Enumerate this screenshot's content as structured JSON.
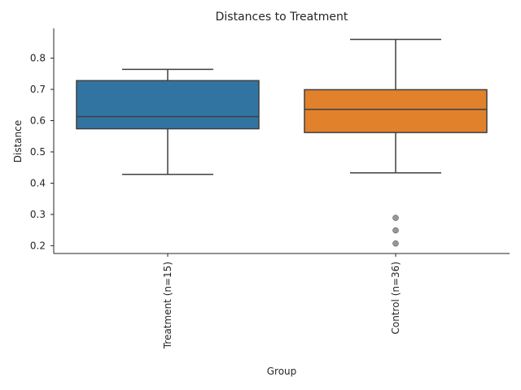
{
  "chart_data": {
    "type": "boxplot",
    "title": "Distances to Treatment",
    "xlabel": "Group",
    "ylabel": "Distance",
    "ylim": [
      0.175,
      0.895
    ],
    "yticks": [
      "0.2",
      "0.3",
      "0.4",
      "0.5",
      "0.6",
      "0.7",
      "0.8"
    ],
    "grid": false,
    "categories": [
      "Treatment (n=15)",
      "Control (n=36)"
    ],
    "boxes": [
      {
        "category": "Treatment (n=15)",
        "color": "#3274a1",
        "whisker_low": 0.428,
        "q1": 0.574,
        "median": 0.613,
        "q3": 0.728,
        "whisker_high": 0.764,
        "outliers": []
      },
      {
        "category": "Control (n=36)",
        "color": "#e1812c",
        "whisker_low": 0.433,
        "q1": 0.562,
        "median": 0.636,
        "q3": 0.699,
        "whisker_high": 0.86,
        "outliers": [
          0.289,
          0.249,
          0.207
        ]
      }
    ]
  }
}
